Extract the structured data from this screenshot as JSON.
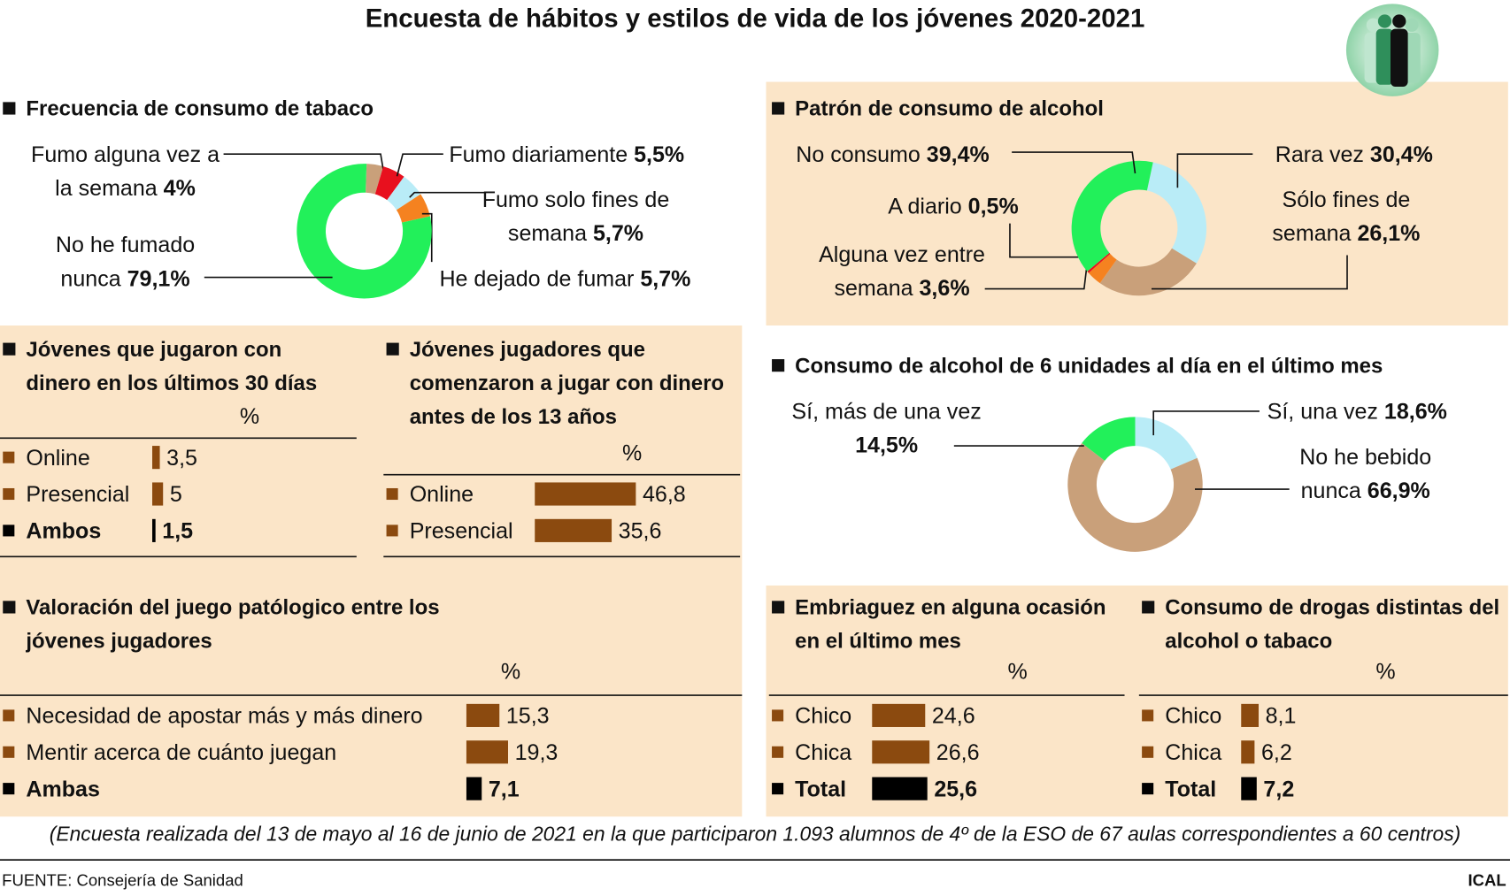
{
  "title": "Encuesta de hábitos y estilos de vida de los jóvenes 2020-2021",
  "chart_data": [
    {
      "type": "pie",
      "title": "Frecuencia de consumo de tabaco",
      "categories": [
        "Fumo alguna vez a la semana",
        "Fumo diariamente",
        "Fumo solo fines de semana",
        "He dejado de fumar",
        "No he fumado nunca"
      ],
      "values": [
        4,
        5.5,
        5.7,
        5.7,
        79.1
      ],
      "value_labels": [
        "4%",
        "5,5%",
        "5,7%",
        "5,7%",
        "79,1%"
      ],
      "colors": [
        "#c9a07a",
        "#e8101e",
        "#b9ecf7",
        "#f58220",
        "#22f05a"
      ]
    },
    {
      "type": "pie",
      "title": "Patrón de consumo de alcohol",
      "categories": [
        "Rara vez",
        "Sólo fines de semana",
        "Alguna vez entre semana",
        "A diario",
        "No consumo"
      ],
      "values": [
        30.4,
        26.1,
        3.6,
        0.5,
        39.4
      ],
      "value_labels": [
        "30,4%",
        "26,1%",
        "3,6%",
        "0,5%",
        "39,4%"
      ],
      "colors": [
        "#b9ecf7",
        "#c9a07a",
        "#f58220",
        "#e8101e",
        "#22f05a"
      ]
    },
    {
      "type": "bar",
      "title": "Jóvenes que jugaron con dinero en los últimos 30 días",
      "unit": "%",
      "categories": [
        "Online",
        "Presencial",
        "Ambos"
      ],
      "values": [
        3.5,
        5,
        1.5
      ],
      "value_labels": [
        "3,5",
        "5",
        "1,5"
      ],
      "colors": [
        "#8b4a0f",
        "#8b4a0f",
        "#000000"
      ]
    },
    {
      "type": "bar",
      "title": "Jóvenes jugadores que comenzaron a jugar con dinero antes de los 13 años",
      "unit": "%",
      "categories": [
        "Online",
        "Presencial"
      ],
      "values": [
        46.8,
        35.6
      ],
      "value_labels": [
        "46,8",
        "35,6"
      ],
      "colors": [
        "#8b4a0f",
        "#8b4a0f"
      ]
    },
    {
      "type": "pie",
      "title": "Consumo de alcohol de 6 unidades al día en el último mes",
      "categories": [
        "Sí, una vez",
        "No he bebido nunca",
        "Sí, más de una vez"
      ],
      "values": [
        18.6,
        66.9,
        14.5
      ],
      "value_labels": [
        "18,6%",
        "66,9%",
        "14,5%"
      ],
      "colors": [
        "#b9ecf7",
        "#c9a07a",
        "#22f05a"
      ]
    },
    {
      "type": "bar",
      "title": "Valoración del juego patólogico entre los jóvenes jugadores",
      "unit": "%",
      "categories": [
        "Necesidad de apostar más y más dinero",
        "Mentir acerca de cuánto juegan",
        "Ambas"
      ],
      "values": [
        15.3,
        19.3,
        7.1
      ],
      "value_labels": [
        "15,3",
        "19,3",
        "7,1"
      ],
      "colors": [
        "#8b4a0f",
        "#8b4a0f",
        "#000000"
      ]
    },
    {
      "type": "bar",
      "title": "Embriaguez en alguna ocasión en el último mes",
      "unit": "%",
      "categories": [
        "Chico",
        "Chica",
        "Total"
      ],
      "values": [
        24.6,
        26.6,
        25.6
      ],
      "value_labels": [
        "24,6",
        "26,6",
        "25,6"
      ],
      "colors": [
        "#8b4a0f",
        "#8b4a0f",
        "#000000"
      ]
    },
    {
      "type": "bar",
      "title": "Consumo de drogas distintas del alcohol o tabaco",
      "unit": "%",
      "categories": [
        "Chico",
        "Chica",
        "Total"
      ],
      "values": [
        8.1,
        6.2,
        7.2
      ],
      "value_labels": [
        "8,1",
        "6,2",
        "7,2"
      ],
      "colors": [
        "#8b4a0f",
        "#8b4a0f",
        "#000000"
      ]
    }
  ],
  "note": "(Encuesta realizada del 13 de mayo al 16 de junio de 2021 en la que participaron 1.093 alumnos de 4º de la ESO de 67 aulas correspondientes a 60 centros)",
  "source": "FUENTE: Consejería de Sanidad",
  "credit": "ICAL"
}
